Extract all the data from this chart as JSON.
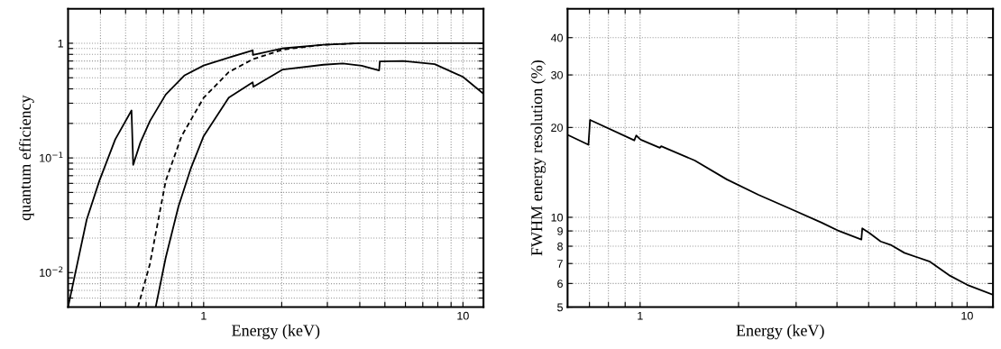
{
  "chart_data": [
    {
      "type": "line",
      "xlabel": "Energy (keV)",
      "ylabel": "quantum efficiency",
      "log": "xy",
      "grid": true,
      "line_style": "solid",
      "marker": "none",
      "xlim": [
        0.3,
        12
      ],
      "ylim": [
        0.005,
        2
      ],
      "xticks": [
        {
          "value": 0.4,
          "label": null
        },
        {
          "value": 0.5,
          "label": null
        },
        {
          "value": 0.6,
          "label": null
        },
        {
          "value": 0.7,
          "label": null
        },
        {
          "value": 0.8,
          "label": null
        },
        {
          "value": 0.9,
          "label": null
        },
        1,
        {
          "value": 2,
          "label": null
        },
        {
          "value": 3,
          "label": null
        },
        {
          "value": 4,
          "label": null
        },
        {
          "value": 5,
          "label": null
        },
        {
          "value": 6,
          "label": null
        },
        {
          "value": 7,
          "label": null
        },
        {
          "value": 8,
          "label": null
        },
        {
          "value": 9,
          "label": null
        },
        10
      ],
      "yticks": [
        {
          "value": 0.006,
          "label": null
        },
        {
          "value": 0.007,
          "label": null
        },
        {
          "value": 0.008,
          "label": null
        },
        {
          "value": 0.009,
          "label": null
        },
        {
          "value": 0.01,
          "label": "10$^{−2}$"
        },
        {
          "value": 0.02,
          "label": null
        },
        {
          "value": 0.03,
          "label": null
        },
        {
          "value": 0.04,
          "label": null
        },
        {
          "value": 0.05,
          "label": null
        },
        {
          "value": 0.06,
          "label": null
        },
        {
          "value": 0.07,
          "label": null
        },
        {
          "value": 0.08,
          "label": null
        },
        {
          "value": 0.09,
          "label": null
        },
        {
          "value": 0.1,
          "label": "10$^{−1}$"
        },
        {
          "value": 0.2,
          "label": null
        },
        {
          "value": 0.3,
          "label": null
        },
        {
          "value": 0.4,
          "label": null
        },
        {
          "value": 0.5,
          "label": null
        },
        {
          "value": 0.6,
          "label": null
        },
        {
          "value": 0.7,
          "label": null
        },
        {
          "value": 0.8,
          "label": null
        },
        {
          "value": 0.9,
          "label": null
        },
        1
      ],
      "series": [
        {
          "color": "#000000",
          "x": [
            0.3,
            0.354,
            0.396,
            0.456,
            0.527,
            0.535,
            0.57,
            0.621,
            0.714,
            0.845,
            1.0,
            1.25,
            1.546,
            1.55,
            2.0,
            2.9,
            4.0,
            6.0,
            12
          ],
          "values": [
            0.005,
            0.029,
            0.063,
            0.145,
            0.259,
            0.087,
            0.136,
            0.21,
            0.357,
            0.526,
            0.64,
            0.75,
            0.868,
            0.79,
            0.9,
            0.97,
            1.0,
            1.0,
            1.0
          ]
        },
        {
          "color": "#000000",
          "line_style": "dashed",
          "x": [
            0.558,
            0.62,
            0.714,
            0.822,
            1.0,
            1.25,
            1.546,
            2.02,
            2.9,
            4.0
          ],
          "values": [
            0.005,
            0.0118,
            0.063,
            0.155,
            0.335,
            0.56,
            0.725,
            0.88,
            0.97,
            1.0
          ]
        },
        {
          "color": "#000000",
          "x": [
            0.653,
            0.714,
            0.799,
            0.894,
            1.0,
            1.25,
            1.546,
            1.555,
            2.02,
            2.9,
            3.44,
            4.07,
            4.75,
            4.78,
            5.87,
            7.78,
            10,
            12
          ],
          "values": [
            0.005,
            0.0135,
            0.0375,
            0.082,
            0.155,
            0.335,
            0.456,
            0.417,
            0.59,
            0.65,
            0.667,
            0.638,
            0.579,
            0.693,
            0.7,
            0.658,
            0.509,
            0.362
          ]
        }
      ]
    },
    {
      "type": "line",
      "xlabel": "Energy (keV)",
      "ylabel": "FWHM energy resolution (%)",
      "log": "xy",
      "grid": true,
      "line_style": "solid",
      "marker": "none",
      "xlim": [
        0.6,
        12
      ],
      "ylim": [
        5,
        50
      ],
      "xticks": [
        {
          "value": 0.7,
          "label": null
        },
        {
          "value": 0.8,
          "label": null
        },
        {
          "value": 0.9,
          "label": null
        },
        1,
        {
          "value": 2,
          "label": null
        },
        {
          "value": 3,
          "label": null
        },
        {
          "value": 4,
          "label": null
        },
        {
          "value": 5,
          "label": null
        },
        {
          "value": 6,
          "label": null
        },
        {
          "value": 7,
          "label": null
        },
        {
          "value": 8,
          "label": null
        },
        {
          "value": 9,
          "label": null
        },
        10
      ],
      "yticks": [
        5,
        6,
        7,
        8,
        9,
        10,
        20,
        30,
        40
      ],
      "series": [
        {
          "color": "#000000",
          "x": [
            0.6,
            0.695,
            0.703,
            0.96,
            0.973,
            1.004,
            1.149,
            1.16,
            1.47,
            1.84,
            2.3,
            2.87,
            3.59,
            4.01,
            4.75,
            4.78,
            5.02,
            5.44,
            5.87,
            6.43,
            7.7,
            8.8,
            10,
            12
          ],
          "values": [
            18.9,
            17.5,
            21.2,
            18.1,
            18.8,
            18.2,
            17.1,
            17.3,
            15.5,
            13.4,
            11.9,
            10.7,
            9.6,
            9.05,
            8.42,
            9.18,
            8.86,
            8.3,
            8.06,
            7.6,
            7.1,
            6.4,
            5.94,
            5.5
          ]
        }
      ]
    }
  ]
}
